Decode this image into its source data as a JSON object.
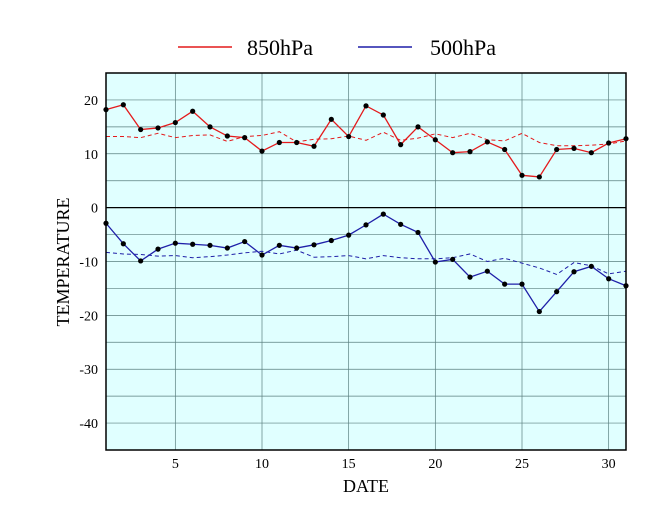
{
  "chart_data": {
    "type": "line",
    "xlabel": "DATE",
    "ylabel": "TEMPERATURE",
    "xlim": [
      1,
      31
    ],
    "ylim": [
      -45,
      25
    ],
    "x_ticks": [
      5,
      10,
      15,
      20,
      25,
      30
    ],
    "y_ticks": [
      20,
      10,
      0,
      -10,
      -20,
      -30,
      -40
    ],
    "grid": true,
    "background": "#e0ffff",
    "legend_position": "top",
    "x": [
      1,
      2,
      3,
      4,
      5,
      6,
      7,
      8,
      9,
      10,
      11,
      12,
      13,
      14,
      15,
      16,
      17,
      18,
      19,
      20,
      21,
      22,
      23,
      24,
      25,
      26,
      27,
      28,
      29,
      30,
      31
    ],
    "series": [
      {
        "name": "850hPa",
        "color": "#e41a1c",
        "style": "solid",
        "markers": true,
        "values": [
          18.2,
          19.1,
          14.5,
          14.8,
          15.8,
          17.9,
          15.0,
          13.3,
          13.0,
          10.5,
          12.1,
          12.1,
          11.4,
          16.4,
          13.2,
          18.9,
          17.2,
          11.7,
          15.0,
          12.6,
          10.2,
          10.4,
          12.2,
          10.8,
          6.0,
          5.7,
          10.8,
          11.0,
          10.2,
          12.0,
          12.8
        ]
      },
      {
        "name": "",
        "color": "#e41a1c",
        "style": "dashed",
        "markers": false,
        "values": [
          13.2,
          13.2,
          13.0,
          13.8,
          13.0,
          13.4,
          13.5,
          12.3,
          13.2,
          13.4,
          14.1,
          12.2,
          12.7,
          12.8,
          13.3,
          12.5,
          14.0,
          12.5,
          12.9,
          13.7,
          13.0,
          13.8,
          12.6,
          12.4,
          13.8,
          12.1,
          11.5,
          11.5,
          11.6,
          11.8,
          12.4
        ]
      },
      {
        "name": "500hPa",
        "color": "#1f1fa8",
        "style": "solid",
        "markers": true,
        "values": [
          -2.9,
          -6.7,
          -9.9,
          -7.7,
          -6.6,
          -6.8,
          -7.0,
          -7.5,
          -6.3,
          -8.8,
          -7.0,
          -7.5,
          -6.9,
          -6.1,
          -5.1,
          -3.2,
          -1.2,
          -3.1,
          -4.6,
          -10.1,
          -9.6,
          -12.9,
          -11.8,
          -14.2,
          -14.2,
          -19.3,
          -15.6,
          -11.9,
          -10.9,
          -13.2,
          -14.5
        ]
      },
      {
        "name": "",
        "color": "#1f1fa8",
        "style": "dashed",
        "markers": false,
        "values": [
          -8.3,
          -8.6,
          -8.7,
          -9.0,
          -8.9,
          -9.3,
          -9.1,
          -8.8,
          -8.4,
          -8.1,
          -8.6,
          -7.9,
          -9.2,
          -9.1,
          -8.9,
          -9.5,
          -8.9,
          -9.3,
          -9.5,
          -9.5,
          -9.3,
          -8.6,
          -10.0,
          -9.4,
          -10.3,
          -11.2,
          -12.4,
          -10.2,
          -10.8,
          -12.3,
          -11.8
        ]
      }
    ]
  }
}
